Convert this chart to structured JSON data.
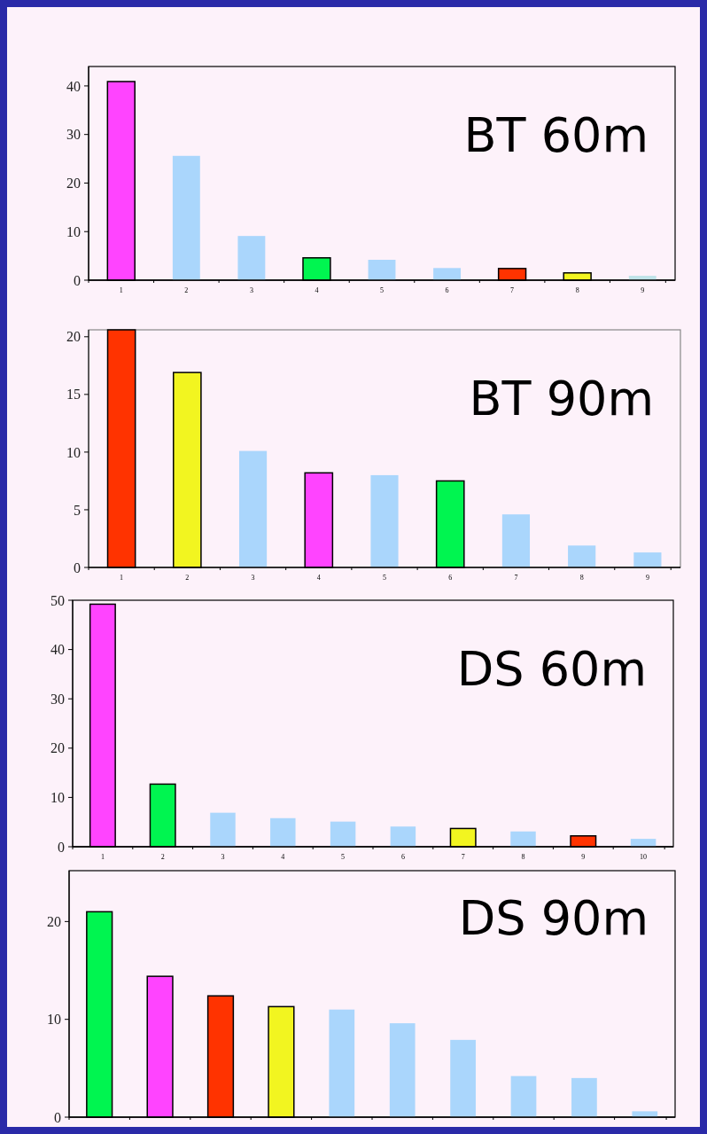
{
  "chart_data": [
    {
      "type": "bar",
      "title": "BT 60m",
      "categories": [
        "1",
        "2",
        "3",
        "4",
        "5",
        "6",
        "7",
        "8",
        "9"
      ],
      "values": [
        40.9,
        25.6,
        9.1,
        4.6,
        4.2,
        2.5,
        2.4,
        1.5,
        0.9
      ],
      "colors": [
        "#ff44ff",
        "#aad6fc",
        "#aad6fc",
        "#00f550",
        "#aad6fc",
        "#aad6fc",
        "#ff3300",
        "#f2f520",
        "#bfe3e8"
      ],
      "ylim": [
        0,
        44
      ],
      "yticks": [
        0,
        10,
        20,
        30,
        40
      ]
    },
    {
      "type": "bar",
      "title": "BT 90m",
      "categories": [
        "1",
        "2",
        "3",
        "4",
        "5",
        "6",
        "7",
        "8",
        "9"
      ],
      "values": [
        20.6,
        16.9,
        10.1,
        8.2,
        8.0,
        7.5,
        4.6,
        1.9,
        1.3
      ],
      "colors": [
        "#ff3300",
        "#f2f520",
        "#aad6fc",
        "#ff44ff",
        "#aad6fc",
        "#00f550",
        "#aad6fc",
        "#aad6fc",
        "#aad6fc"
      ],
      "ylim": [
        0,
        20.6
      ],
      "yticks": [
        0,
        5,
        10,
        15,
        20
      ]
    },
    {
      "type": "bar",
      "title": "DS 60m",
      "categories": [
        "1",
        "2",
        "3",
        "4",
        "5",
        "6",
        "7",
        "8",
        "9",
        "10"
      ],
      "values": [
        49.2,
        12.7,
        6.9,
        5.8,
        5.1,
        4.1,
        3.7,
        3.1,
        2.2,
        1.6
      ],
      "colors": [
        "#ff44ff",
        "#00f550",
        "#aad6fc",
        "#aad6fc",
        "#aad6fc",
        "#aad6fc",
        "#f2f520",
        "#aad6fc",
        "#ff3300",
        "#aad6fc"
      ],
      "ylim": [
        0,
        50
      ],
      "yticks": [
        0,
        10,
        20,
        30,
        40,
        50
      ]
    },
    {
      "type": "bar",
      "title": "DS 90m",
      "categories": [
        null,
        null,
        null,
        null,
        null,
        null,
        null,
        null,
        null,
        null
      ],
      "values": [
        21.0,
        14.4,
        12.4,
        11.3,
        11.0,
        9.6,
        7.9,
        4.2,
        4.0,
        0.6
      ],
      "colors": [
        "#00f550",
        "#ff44ff",
        "#ff3300",
        "#f2f520",
        "#aad6fc",
        "#aad6fc",
        "#aad6fc",
        "#aad6fc",
        "#aad6fc",
        "#aad6fc"
      ],
      "ylim": [
        0,
        25.2
      ],
      "yticks": [
        0,
        10,
        20
      ]
    }
  ]
}
